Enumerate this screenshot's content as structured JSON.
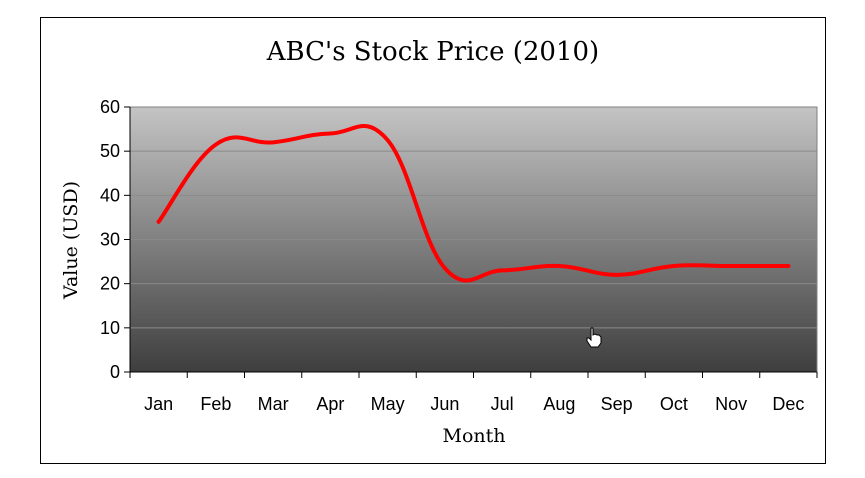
{
  "chart_data": {
    "type": "line",
    "title": "ABC's Stock Price (2010)",
    "xlabel": "Month",
    "ylabel": "Value (USD)",
    "categories": [
      "Jan",
      "Feb",
      "Mar",
      "Apr",
      "May",
      "Jun",
      "Jul",
      "Aug",
      "Sep",
      "Oct",
      "Nov",
      "Dec"
    ],
    "series": [
      {
        "values": [
          34,
          51.5,
          52,
          54,
          52.5,
          23.5,
          23,
          24,
          22,
          24,
          24,
          24
        ],
        "color": "#ff0000"
      }
    ],
    "ylim": [
      0,
      60
    ],
    "yticks": [
      "0",
      "10",
      "20",
      "30",
      "40",
      "50",
      "60"
    ],
    "grid": true,
    "legend": "none",
    "background": "vertical gradient, light grey at top to dark grey at bottom"
  },
  "cursor_icon": "hand-pointer-icon"
}
